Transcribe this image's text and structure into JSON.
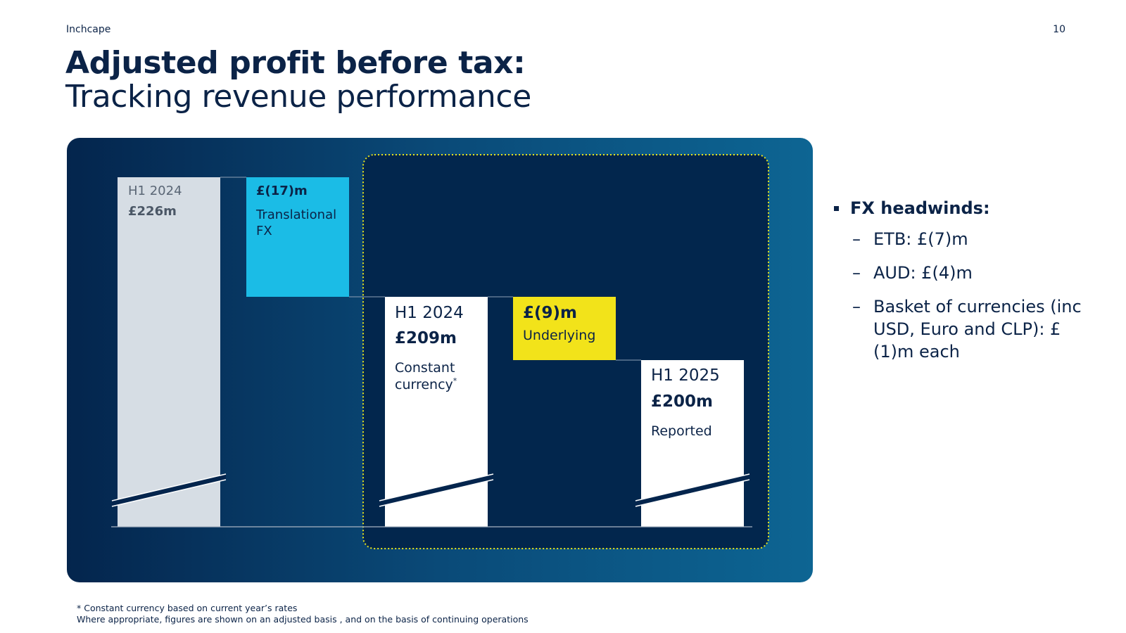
{
  "header": {
    "brand": "Inchcape",
    "page_number": "10"
  },
  "title": "Adjusted profit before tax:",
  "subtitle": "Tracking revenue performance",
  "colors": {
    "panel_dark": "#04254d",
    "highlight_box": "#02264d",
    "bar_start": "#d6dde4",
    "bar_fx": "#1bbce6",
    "bar_white": "#ffffff",
    "bar_underlying": "#f2e31a",
    "text_dark": "#0b2347",
    "dotted_border": "#e9e31a"
  },
  "chart_data": {
    "type": "bar",
    "subtype": "waterfall",
    "axis_break": true,
    "categories": [
      "H1 2024",
      "Translational FX",
      "H1 2024 Constant currency",
      "Underlying",
      "H1 2025 Reported"
    ],
    "values": [
      226,
      -17,
      209,
      -9,
      200
    ],
    "kinds": [
      "total",
      "delta",
      "total",
      "delta",
      "total"
    ],
    "unit": "£m",
    "highlight_range": [
      "H1 2024 Constant currency",
      "H1 2025 Reported"
    ],
    "bars": [
      {
        "line1": "H1 2024",
        "value_label": "£226m",
        "line3": "",
        "line4": ""
      },
      {
        "value_label": "£(17)m",
        "line3": "Translational",
        "line4": "FX"
      },
      {
        "line1": "H1 2024",
        "value_label": "£209m",
        "line3": "Constant",
        "line4": "currency",
        "sup": "*"
      },
      {
        "value_label": "£(9)m",
        "line3": "Underlying"
      },
      {
        "line1": "H1 2025",
        "value_label": "£200m",
        "line3": "Reported"
      }
    ]
  },
  "bullets": {
    "heading": "FX headwinds:",
    "items": [
      "ETB: £(7)m",
      "AUD: £(4)m",
      "Basket of currencies (inc USD, Euro and CLP): £(1)m each"
    ]
  },
  "footnotes": [
    "* Constant currency based on current year’s rates",
    "Where appropriate, figures are shown on an adjusted basis , and on the basis of continuing operations"
  ]
}
